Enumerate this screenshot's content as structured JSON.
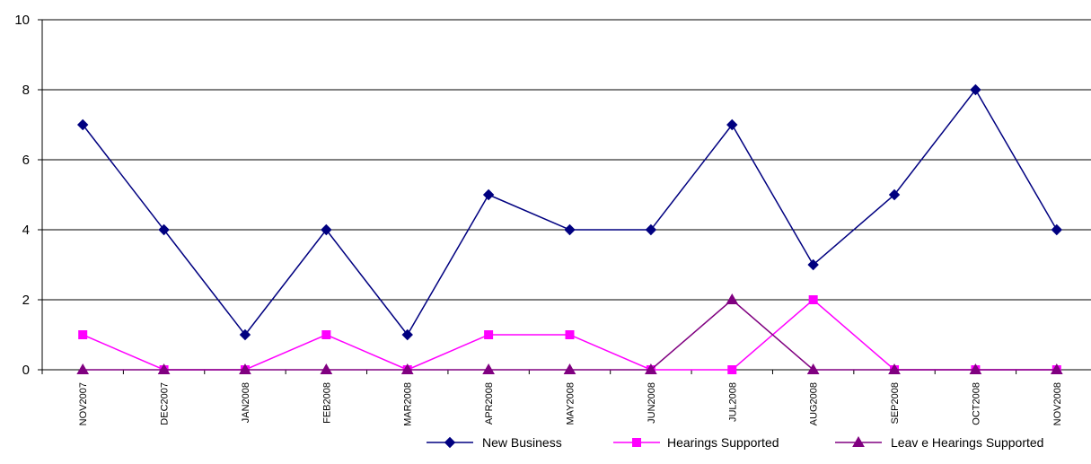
{
  "chart_data": {
    "type": "line",
    "categories": [
      "NOV2007",
      "DEC2007",
      "JAN2008",
      "FEB2008",
      "MAR2008",
      "APR2008",
      "MAY2008",
      "JUN2008",
      "JUL2008",
      "AUG2008",
      "SEP2008",
      "OCT2008",
      "NOV2008"
    ],
    "series": [
      {
        "name": "New Business",
        "color": "#000080",
        "marker": "diamond",
        "values": [
          7,
          4,
          1,
          4,
          1,
          5,
          4,
          4,
          7,
          3,
          5,
          8,
          4
        ]
      },
      {
        "name": "Hearings Supported",
        "color": "#ff00ff",
        "marker": "square",
        "values": [
          1,
          0,
          0,
          1,
          0,
          1,
          1,
          0,
          0,
          2,
          0,
          0,
          0
        ]
      },
      {
        "name": "Leav e Hearings Supported",
        "color": "#800080",
        "marker": "triangle",
        "values": [
          0,
          0,
          0,
          0,
          0,
          0,
          0,
          0,
          2,
          0,
          0,
          0,
          0
        ]
      }
    ],
    "ylim": [
      0,
      10
    ],
    "yticks": [
      0,
      2,
      4,
      6,
      8,
      10
    ],
    "grid": "horizontal",
    "legend": "bottom-right"
  }
}
